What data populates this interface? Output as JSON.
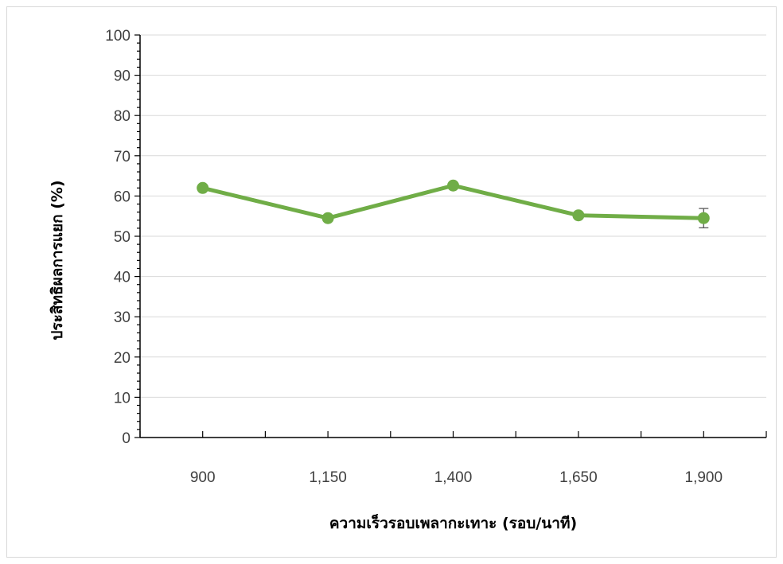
{
  "chart_data": {
    "type": "line",
    "categories": [
      "900",
      "1,150",
      "1,400",
      "1,650",
      "1,900"
    ],
    "series": [
      {
        "values": [
          62.0,
          54.5,
          62.6,
          55.2,
          54.5
        ],
        "errors": [
          0.4,
          0.3,
          0.7,
          0.4,
          2.4
        ],
        "color": "#70ad47"
      }
    ],
    "xlabel": "ความเร็วรอบเพลากะเทาะ (รอบ/นาที)",
    "ylabel": "ประสิทธิผลการแยก (%)",
    "ylim": [
      0,
      100
    ],
    "yticks": [
      0,
      10,
      20,
      30,
      40,
      50,
      60,
      70,
      80,
      90,
      100
    ],
    "grid": true,
    "legend": "none"
  }
}
